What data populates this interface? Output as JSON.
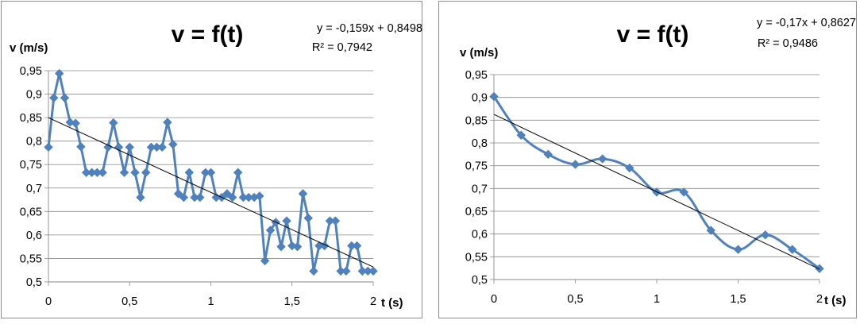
{
  "chart_data": [
    {
      "type": "scatter",
      "title": "v = f(t)",
      "ylabel": "v (m/s)",
      "xlabel": "t (s)",
      "trendline": {
        "equation": "y = -0,159x + 0,8498",
        "r2": "R² = 0,7942",
        "slope": -0.159,
        "intercept": 0.8498
      },
      "xlim": [
        0,
        2
      ],
      "ylim": [
        0.5,
        0.95
      ],
      "xticks": [
        "0",
        "0,5",
        "1",
        "1,5",
        "2"
      ],
      "yticks": [
        "0,5",
        "0,55",
        "0,6",
        "0,65",
        "0,7",
        "0,75",
        "0,8",
        "0,85",
        "0,9",
        "0,95"
      ],
      "grid": "horizontal",
      "series": [
        {
          "color": "#4f81bd",
          "x": [
            0,
            0.033,
            0.067,
            0.1,
            0.133,
            0.167,
            0.2,
            0.233,
            0.267,
            0.3,
            0.333,
            0.367,
            0.4,
            0.433,
            0.467,
            0.5,
            0.533,
            0.567,
            0.6,
            0.633,
            0.667,
            0.7,
            0.733,
            0.767,
            0.8,
            0.833,
            0.867,
            0.9,
            0.933,
            0.967,
            1.0,
            1.033,
            1.067,
            1.1,
            1.133,
            1.167,
            1.2,
            1.233,
            1.267,
            1.3,
            1.333,
            1.367,
            1.4,
            1.433,
            1.467,
            1.5,
            1.533,
            1.567,
            1.6,
            1.633,
            1.667,
            1.7,
            1.733,
            1.767,
            1.8,
            1.833,
            1.867,
            1.9,
            1.933,
            1.967,
            2.0
          ],
          "y": [
            0.787,
            0.892,
            0.944,
            0.892,
            0.84,
            0.838,
            0.788,
            0.733,
            0.733,
            0.733,
            0.733,
            0.787,
            0.839,
            0.787,
            0.733,
            0.787,
            0.733,
            0.68,
            0.733,
            0.787,
            0.787,
            0.787,
            0.84,
            0.793,
            0.688,
            0.68,
            0.733,
            0.68,
            0.68,
            0.733,
            0.733,
            0.68,
            0.68,
            0.688,
            0.68,
            0.733,
            0.68,
            0.68,
            0.68,
            0.683,
            0.545,
            0.61,
            0.627,
            0.575,
            0.63,
            0.577,
            0.575,
            0.688,
            0.636,
            0.523,
            0.577,
            0.577,
            0.63,
            0.63,
            0.523,
            0.523,
            0.577,
            0.577,
            0.523,
            0.523,
            0.523
          ]
        }
      ]
    },
    {
      "type": "scatter",
      "title": "v = f(t)",
      "ylabel": "v (m/s)",
      "xlabel": "t (s)",
      "trendline": {
        "equation": "y = -0,17x + 0,8627",
        "r2": "R² = 0,9486",
        "slope": -0.17,
        "intercept": 0.8627
      },
      "xlim": [
        0,
        2
      ],
      "ylim": [
        0.5,
        0.95
      ],
      "xticks": [
        "0",
        "0,5",
        "1",
        "1,5",
        "2"
      ],
      "yticks": [
        "0,5",
        "0,55",
        "0,6",
        "0,65",
        "0,7",
        "0,75",
        "0,8",
        "0,85",
        "0,9",
        "0,95"
      ],
      "grid": "horizontal",
      "series": [
        {
          "color": "#4f81bd",
          "x": [
            0,
            0.167,
            0.333,
            0.5,
            0.667,
            0.833,
            1.0,
            1.167,
            1.333,
            1.5,
            1.667,
            1.833,
            2.0
          ],
          "y": [
            0.902,
            0.817,
            0.775,
            0.753,
            0.765,
            0.745,
            0.692,
            0.692,
            0.608,
            0.566,
            0.598,
            0.566,
            0.524
          ]
        }
      ]
    }
  ]
}
